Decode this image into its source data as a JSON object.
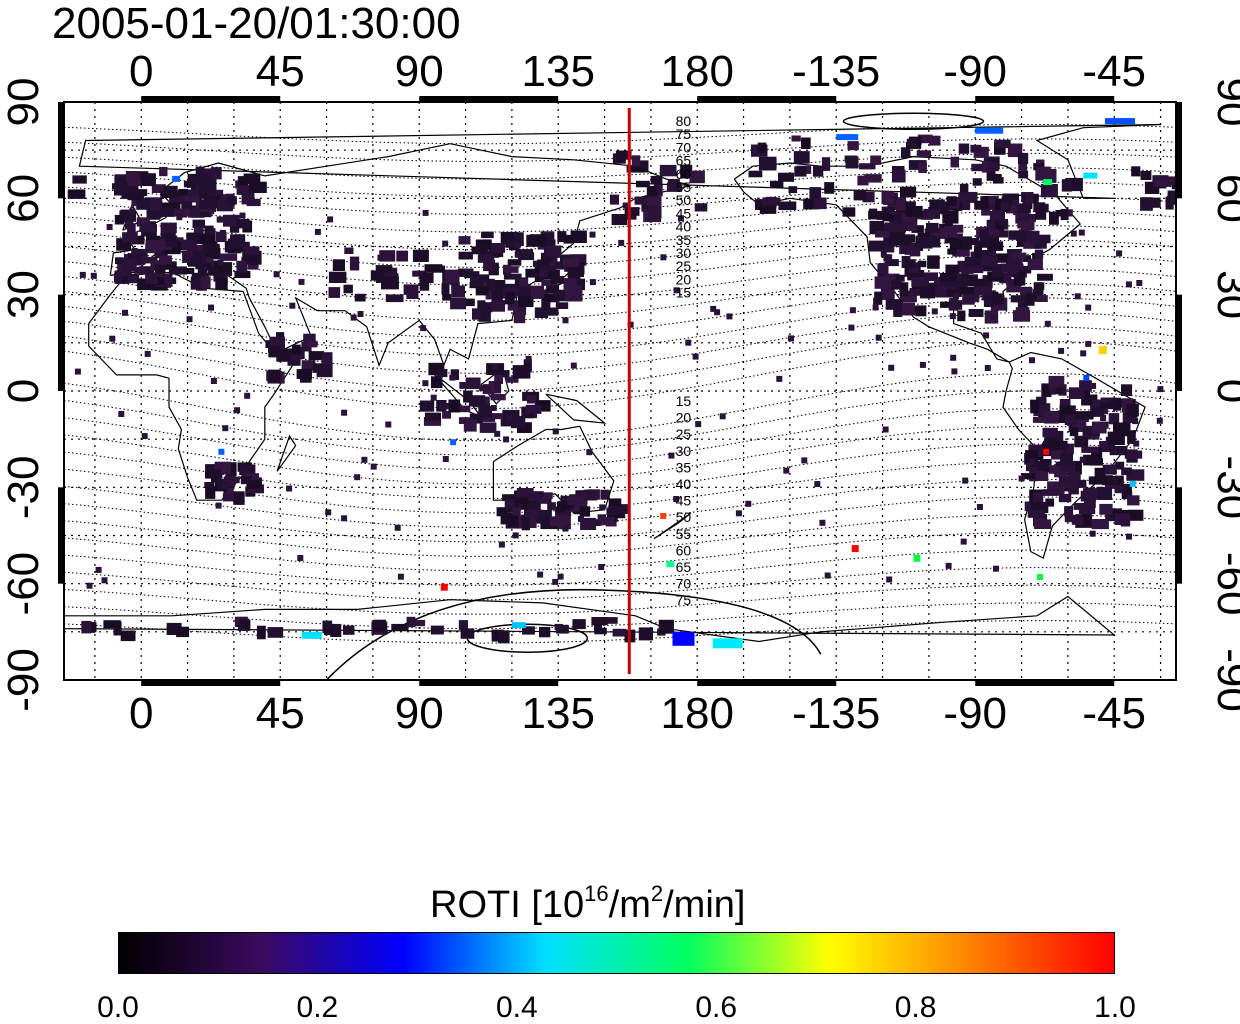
{
  "title": "2005-01-20/01:30:00",
  "map": {
    "lon_labels": [
      "0",
      "45",
      "90",
      "135",
      "180",
      "-135",
      "-90",
      "-45"
    ],
    "lat_labels": [
      "90",
      "60",
      "30",
      "0",
      "-30",
      "-60",
      "-90"
    ],
    "contour_labels_north": [
      "80",
      "75",
      "70",
      "65",
      "60",
      "55",
      "50",
      "45",
      "40",
      "35",
      "30",
      "25",
      "20",
      "15"
    ],
    "contour_labels_south": [
      "15",
      "20",
      "25",
      "30",
      "35",
      "40",
      "45",
      "50",
      "55",
      "60",
      "65",
      "70",
      "75"
    ],
    "meridian_line_color": "#cc0000",
    "meridian_longitude": 158
  },
  "colorbar": {
    "title_prefix": "ROTI  [10",
    "title_sup1": "16",
    "title_mid": "/m",
    "title_sup2": "2",
    "title_suffix": "/min]",
    "ticks": [
      "0.0",
      "0.2",
      "0.4",
      "0.6",
      "0.8",
      "1.0"
    ],
    "colors": [
      "#000000",
      "#3a0a5e",
      "#0000ff",
      "#00e0ff",
      "#00ff60",
      "#ffff00",
      "#ff8000",
      "#ff0000"
    ]
  }
}
